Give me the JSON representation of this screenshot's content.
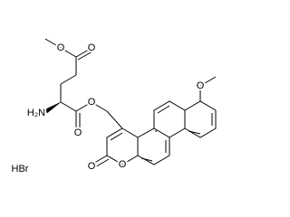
{
  "structure": {
    "atoms": [
      "O",
      "O",
      "H₂N",
      "O",
      "O",
      "O",
      "O",
      "O"
    ],
    "salt": "HBr"
  }
}
